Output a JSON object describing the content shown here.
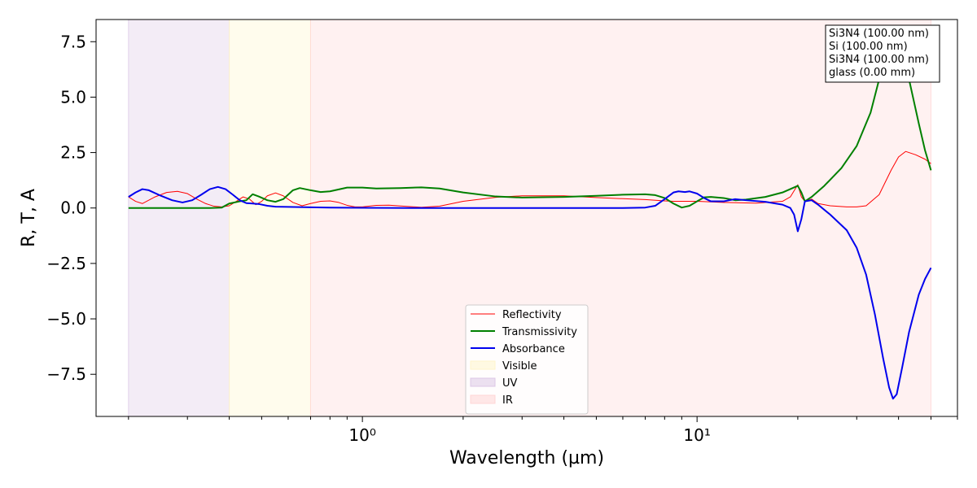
{
  "chart_data": {
    "type": "line",
    "xlabel": "Wavelength (µm)",
    "ylabel": "R, T, A",
    "xscale": "log",
    "xlim": [
      0.16,
      60
    ],
    "ylim": [
      -9.4,
      8.5
    ],
    "grid": false,
    "legend_position": "bottom-center",
    "x_ticks": [
      {
        "value": 1,
        "label": "10⁰"
      },
      {
        "value": 10,
        "label": "10¹"
      }
    ],
    "y_ticks": [
      {
        "value": 7.5,
        "label": "7.5"
      },
      {
        "value": 5.0,
        "label": "5.0"
      },
      {
        "value": 2.5,
        "label": "2.5"
      },
      {
        "value": 0.0,
        "label": "0.0"
      },
      {
        "value": -2.5,
        "label": "−2.5"
      },
      {
        "value": -5.0,
        "label": "−5.0"
      },
      {
        "value": -7.5,
        "label": "−7.5"
      }
    ],
    "bands": [
      {
        "name": "UV",
        "x_range": [
          0.2,
          0.4
        ],
        "color": "#dcc8e6"
      },
      {
        "name": "Visible",
        "x_range": [
          0.4,
          0.7
        ],
        "color": "#fff5cc"
      },
      {
        "name": "IR",
        "x_range": [
          0.7,
          50
        ],
        "color": "#ffd6d6"
      }
    ],
    "series": [
      {
        "name": "Reflectivity",
        "color": "#ff0000",
        "width": 1,
        "points": [
          [
            0.2,
            0.5
          ],
          [
            0.21,
            0.3
          ],
          [
            0.22,
            0.2
          ],
          [
            0.24,
            0.5
          ],
          [
            0.26,
            0.7
          ],
          [
            0.28,
            0.75
          ],
          [
            0.3,
            0.65
          ],
          [
            0.32,
            0.4
          ],
          [
            0.34,
            0.2
          ],
          [
            0.36,
            0.08
          ],
          [
            0.38,
            0.05
          ],
          [
            0.4,
            0.1
          ],
          [
            0.42,
            0.3
          ],
          [
            0.44,
            0.5
          ],
          [
            0.46,
            0.4
          ],
          [
            0.48,
            0.15
          ],
          [
            0.5,
            0.3
          ],
          [
            0.52,
            0.55
          ],
          [
            0.55,
            0.68
          ],
          [
            0.58,
            0.55
          ],
          [
            0.62,
            0.25
          ],
          [
            0.66,
            0.1
          ],
          [
            0.7,
            0.2
          ],
          [
            0.75,
            0.3
          ],
          [
            0.8,
            0.32
          ],
          [
            0.85,
            0.25
          ],
          [
            0.9,
            0.12
          ],
          [
            0.95,
            0.05
          ],
          [
            1.0,
            0.05
          ],
          [
            1.1,
            0.12
          ],
          [
            1.2,
            0.13
          ],
          [
            1.3,
            0.09
          ],
          [
            1.5,
            0.03
          ],
          [
            1.7,
            0.08
          ],
          [
            2.0,
            0.3
          ],
          [
            2.5,
            0.48
          ],
          [
            3.0,
            0.55
          ],
          [
            4.0,
            0.55
          ],
          [
            5.0,
            0.47
          ],
          [
            6.0,
            0.42
          ],
          [
            7.0,
            0.38
          ],
          [
            8.0,
            0.32
          ],
          [
            8.5,
            0.3
          ],
          [
            9.0,
            0.3
          ],
          [
            10,
            0.3
          ],
          [
            12,
            0.25
          ],
          [
            15,
            0.22
          ],
          [
            18,
            0.3
          ],
          [
            19,
            0.5
          ],
          [
            20,
            1.05
          ],
          [
            20.5,
            0.5
          ],
          [
            21,
            0.3
          ],
          [
            22,
            0.4
          ],
          [
            23,
            0.2
          ],
          [
            25,
            0.1
          ],
          [
            28,
            0.05
          ],
          [
            30,
            0.05
          ],
          [
            32,
            0.1
          ],
          [
            35,
            0.6
          ],
          [
            38,
            1.7
          ],
          [
            40,
            2.3
          ],
          [
            42,
            2.55
          ],
          [
            45,
            2.4
          ],
          [
            48,
            2.2
          ],
          [
            50,
            2.0
          ]
        ]
      },
      {
        "name": "Transmissivity",
        "color": "#008000",
        "width": 2,
        "points": [
          [
            0.2,
            0.0
          ],
          [
            0.25,
            0.0
          ],
          [
            0.3,
            0.0
          ],
          [
            0.35,
            0.0
          ],
          [
            0.38,
            0.02
          ],
          [
            0.4,
            0.2
          ],
          [
            0.43,
            0.3
          ],
          [
            0.45,
            0.35
          ],
          [
            0.47,
            0.62
          ],
          [
            0.49,
            0.52
          ],
          [
            0.52,
            0.35
          ],
          [
            0.55,
            0.28
          ],
          [
            0.58,
            0.4
          ],
          [
            0.62,
            0.8
          ],
          [
            0.65,
            0.9
          ],
          [
            0.7,
            0.8
          ],
          [
            0.75,
            0.72
          ],
          [
            0.8,
            0.75
          ],
          [
            0.9,
            0.92
          ],
          [
            1.0,
            0.92
          ],
          [
            1.1,
            0.88
          ],
          [
            1.3,
            0.9
          ],
          [
            1.5,
            0.93
          ],
          [
            1.7,
            0.88
          ],
          [
            2.0,
            0.7
          ],
          [
            2.5,
            0.52
          ],
          [
            3,
            0.47
          ],
          [
            4,
            0.5
          ],
          [
            5,
            0.55
          ],
          [
            6,
            0.6
          ],
          [
            7,
            0.62
          ],
          [
            7.5,
            0.58
          ],
          [
            8,
            0.45
          ],
          [
            8.5,
            0.2
          ],
          [
            9,
            0.02
          ],
          [
            9.5,
            0.1
          ],
          [
            10,
            0.3
          ],
          [
            10.5,
            0.48
          ],
          [
            11,
            0.5
          ],
          [
            12,
            0.45
          ],
          [
            13,
            0.35
          ],
          [
            14,
            0.38
          ],
          [
            16,
            0.5
          ],
          [
            18,
            0.7
          ],
          [
            20,
            1.0
          ],
          [
            20.5,
            0.7
          ],
          [
            21,
            0.3
          ],
          [
            22,
            0.5
          ],
          [
            24,
            1.0
          ],
          [
            27,
            1.8
          ],
          [
            30,
            2.8
          ],
          [
            33,
            4.3
          ],
          [
            35,
            5.8
          ],
          [
            37,
            7.0
          ],
          [
            39,
            7.7
          ],
          [
            41,
            7.2
          ],
          [
            43,
            5.8
          ],
          [
            46,
            3.8
          ],
          [
            48,
            2.6
          ],
          [
            50,
            1.7
          ]
        ]
      },
      {
        "name": "Absorbance",
        "color": "#0000ee",
        "width": 2,
        "points": [
          [
            0.2,
            0.5
          ],
          [
            0.21,
            0.7
          ],
          [
            0.22,
            0.85
          ],
          [
            0.23,
            0.8
          ],
          [
            0.25,
            0.55
          ],
          [
            0.27,
            0.35
          ],
          [
            0.29,
            0.25
          ],
          [
            0.31,
            0.35
          ],
          [
            0.33,
            0.6
          ],
          [
            0.35,
            0.85
          ],
          [
            0.37,
            0.95
          ],
          [
            0.39,
            0.85
          ],
          [
            0.41,
            0.6
          ],
          [
            0.43,
            0.35
          ],
          [
            0.45,
            0.22
          ],
          [
            0.47,
            0.2
          ],
          [
            0.49,
            0.18
          ],
          [
            0.52,
            0.1
          ],
          [
            0.55,
            0.06
          ],
          [
            0.6,
            0.05
          ],
          [
            0.7,
            0.03
          ],
          [
            0.8,
            0.02
          ],
          [
            1.0,
            0.01
          ],
          [
            1.5,
            0.0
          ],
          [
            2,
            0.0
          ],
          [
            3,
            0.0
          ],
          [
            4,
            0.0
          ],
          [
            5,
            0.0
          ],
          [
            6,
            0.0
          ],
          [
            7,
            0.02
          ],
          [
            7.5,
            0.1
          ],
          [
            8,
            0.4
          ],
          [
            8.5,
            0.7
          ],
          [
            8.8,
            0.75
          ],
          [
            9.2,
            0.72
          ],
          [
            9.5,
            0.75
          ],
          [
            10,
            0.65
          ],
          [
            10.5,
            0.45
          ],
          [
            11,
            0.3
          ],
          [
            12,
            0.3
          ],
          [
            13,
            0.4
          ],
          [
            14,
            0.35
          ],
          [
            16,
            0.28
          ],
          [
            18,
            0.15
          ],
          [
            19,
            0.0
          ],
          [
            19.5,
            -0.3
          ],
          [
            20,
            -1.05
          ],
          [
            20.5,
            -0.5
          ],
          [
            21,
            0.3
          ],
          [
            22,
            0.35
          ],
          [
            23,
            0.15
          ],
          [
            25,
            -0.3
          ],
          [
            28,
            -1.0
          ],
          [
            30,
            -1.8
          ],
          [
            32,
            -3.0
          ],
          [
            34,
            -4.8
          ],
          [
            36,
            -6.8
          ],
          [
            37.5,
            -8.1
          ],
          [
            38.5,
            -8.6
          ],
          [
            39.5,
            -8.4
          ],
          [
            41,
            -7.2
          ],
          [
            43,
            -5.6
          ],
          [
            46,
            -3.9
          ],
          [
            48,
            -3.2
          ],
          [
            50,
            -2.7
          ]
        ]
      }
    ],
    "legend": [
      {
        "label": "Reflectivity",
        "kind": "line",
        "color": "#ff0000",
        "width": 1
      },
      {
        "label": "Transmissivity",
        "kind": "line",
        "color": "#008000",
        "width": 2
      },
      {
        "label": "Absorbance",
        "kind": "line",
        "color": "#0000ee",
        "width": 2
      },
      {
        "label": "Visible",
        "kind": "patch",
        "color": "#fff5cc"
      },
      {
        "label": "UV",
        "kind": "patch",
        "color": "#dcc8e6"
      },
      {
        "label": "IR",
        "kind": "patch",
        "color": "#ffd6d6"
      }
    ],
    "annotation": [
      "Si3N4 (100.00 nm)",
      "Si (100.00 nm)",
      "Si3N4 (100.00 nm)",
      "glass (0.00 mm)"
    ]
  }
}
